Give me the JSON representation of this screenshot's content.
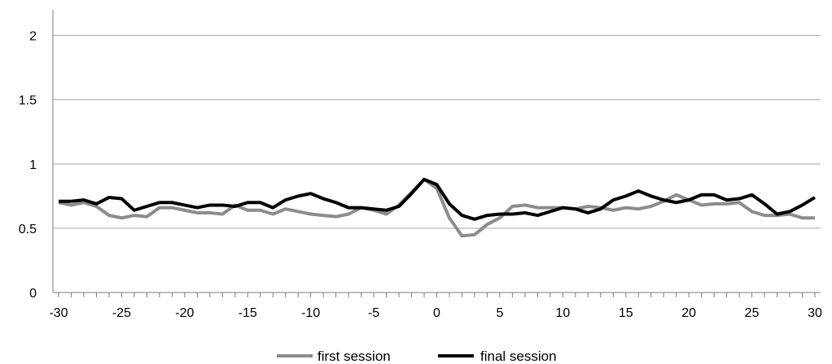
{
  "chart_data": {
    "type": "line",
    "title": "",
    "xlabel": "",
    "ylabel": "",
    "xlim": [
      -30,
      30
    ],
    "ylim": [
      0,
      2.2
    ],
    "grid": true,
    "legend_position": "bottom",
    "x": [
      -30,
      -29,
      -28,
      -27,
      -26,
      -25,
      -24,
      -23,
      -22,
      -21,
      -20,
      -19,
      -18,
      -17,
      -16,
      -15,
      -14,
      -13,
      -12,
      -11,
      -10,
      -9,
      -8,
      -7,
      -6,
      -5,
      -4,
      -3,
      -2,
      -1,
      0,
      1,
      2,
      3,
      4,
      5,
      6,
      7,
      8,
      9,
      10,
      11,
      12,
      13,
      14,
      15,
      16,
      17,
      18,
      19,
      20,
      21,
      22,
      23,
      24,
      25,
      26,
      27,
      28,
      29,
      30
    ],
    "x_ticks": [
      -30,
      -25,
      -20,
      -15,
      -10,
      -5,
      0,
      5,
      10,
      15,
      20,
      25,
      30
    ],
    "x_tick_labels": [
      "-30",
      "-25",
      "-20",
      "-15",
      "-10",
      "-5",
      "0",
      "5",
      "10",
      "15",
      "20",
      "25",
      "30"
    ],
    "y_ticks": [
      0,
      0.5,
      1,
      1.5,
      2
    ],
    "y_tick_labels": [
      "0",
      "0.5",
      "1",
      "1.5",
      "2"
    ],
    "series": [
      {
        "name": "first session",
        "color": "#8c8c8c",
        "values": [
          0.7,
          0.68,
          0.7,
          0.67,
          0.6,
          0.58,
          0.6,
          0.59,
          0.66,
          0.66,
          0.64,
          0.62,
          0.62,
          0.61,
          0.68,
          0.64,
          0.64,
          0.61,
          0.65,
          0.63,
          0.61,
          0.6,
          0.59,
          0.61,
          0.66,
          0.64,
          0.61,
          0.68,
          0.78,
          0.88,
          0.81,
          0.58,
          0.44,
          0.45,
          0.53,
          0.58,
          0.67,
          0.68,
          0.66,
          0.66,
          0.66,
          0.65,
          0.67,
          0.66,
          0.64,
          0.66,
          0.65,
          0.67,
          0.71,
          0.76,
          0.72,
          0.68,
          0.69,
          0.69,
          0.7,
          0.63,
          0.6,
          0.6,
          0.61,
          0.58,
          0.58
        ]
      },
      {
        "name": "final session",
        "color": "#000000",
        "values": [
          0.71,
          0.71,
          0.72,
          0.69,
          0.74,
          0.73,
          0.64,
          0.67,
          0.7,
          0.7,
          0.68,
          0.66,
          0.68,
          0.68,
          0.67,
          0.7,
          0.7,
          0.66,
          0.72,
          0.75,
          0.77,
          0.73,
          0.7,
          0.66,
          0.66,
          0.65,
          0.64,
          0.67,
          0.77,
          0.88,
          0.84,
          0.69,
          0.6,
          0.57,
          0.6,
          0.61,
          0.61,
          0.62,
          0.6,
          0.63,
          0.66,
          0.65,
          0.62,
          0.65,
          0.72,
          0.75,
          0.79,
          0.75,
          0.72,
          0.7,
          0.72,
          0.76,
          0.76,
          0.72,
          0.73,
          0.76,
          0.69,
          0.61,
          0.63,
          0.68,
          0.74
        ]
      }
    ]
  }
}
